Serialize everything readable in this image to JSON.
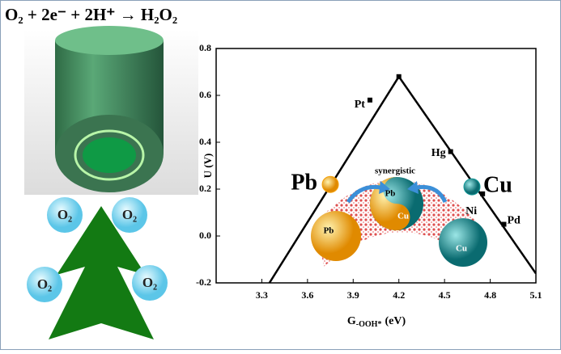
{
  "equation": "O₂ + 2e⁻ + 2H⁺ → H₂O₂",
  "bubbles": [
    "O₂",
    "O₂",
    "O₂",
    "O₂"
  ],
  "chart_data": {
    "type": "scatter",
    "xlabel_parts": [
      "G",
      "-OOH*",
      "(eV)"
    ],
    "ylabel": "U (V)",
    "xlim": [
      3.0,
      5.1
    ],
    "ylim": [
      -0.2,
      0.8
    ],
    "xticks": [
      3.3,
      3.6,
      3.9,
      4.2,
      4.5,
      4.8,
      5.1
    ],
    "yticks": [
      -0.2,
      {
        "value": 0,
        "label": "0.0"
      },
      0.2,
      0.4,
      0.6,
      0.8
    ],
    "volcano": {
      "x": [
        3.35,
        4.2,
        5.1
      ],
      "y": [
        -0.2,
        0.68,
        -0.16
      ]
    },
    "points": {
      "labels": [
        "Pt",
        "Hg",
        "Ni",
        "Pd"
      ],
      "x": [
        4.01,
        4.54,
        4.75,
        4.89
      ],
      "y": [
        0.58,
        0.36,
        0.18,
        0.05
      ]
    },
    "spheres": {
      "labels": [
        "Pb",
        "Cu"
      ],
      "x": [
        3.75,
        4.68
      ],
      "y": [
        0.22,
        0.21
      ],
      "colors": [
        "#f5a20a",
        "#139a9a"
      ]
    },
    "illustration": {
      "caption": "synergistic",
      "left": "Pb",
      "right": "Cu",
      "center": [
        "Pb",
        "Cu"
      ]
    }
  }
}
